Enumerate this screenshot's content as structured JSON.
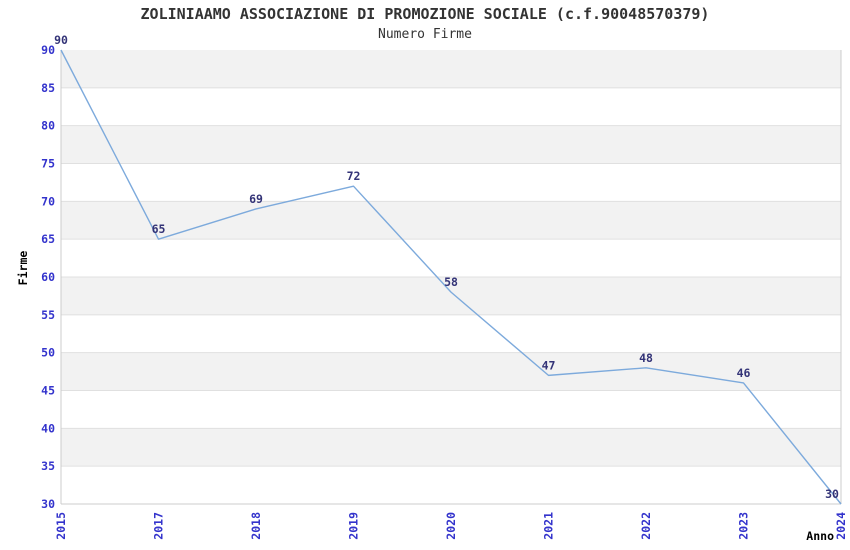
{
  "header": {
    "title": "ZOLINIAAMO ASSOCIAZIONE DI PROMOZIONE SOCIALE (c.f.90048570379)",
    "subtitle": "Numero Firme"
  },
  "chart_data": {
    "type": "line",
    "title": "ZOLINIAAMO ASSOCIAZIONE DI PROMOZIONE SOCIALE (c.f.90048570379)",
    "subtitle": "Numero Firme",
    "xlabel": "Anno",
    "ylabel": "Firme",
    "categories": [
      "2015",
      "2017",
      "2018",
      "2019",
      "2020",
      "2021",
      "2022",
      "2023",
      "2024"
    ],
    "series": [
      {
        "name": "Numero Firme",
        "values": [
          90,
          65,
          69,
          72,
          58,
          47,
          48,
          46,
          30
        ]
      }
    ],
    "data_labels": [
      "90",
      "65",
      "69",
      "72",
      "58",
      "47",
      "48",
      "46",
      "30"
    ],
    "ylim": [
      30,
      90
    ],
    "ytick_step": 5,
    "yticks": [
      30,
      35,
      40,
      45,
      50,
      55,
      60,
      65,
      70,
      75,
      80,
      85,
      90
    ],
    "grid": "horizontal-bands-alternating",
    "legend_position": "none",
    "colors": {
      "line": "#7daadc",
      "tick_label": "#3333cc",
      "data_label": "#333377",
      "band_gray": "#f2f2f2",
      "band_white": "#ffffff",
      "gridline": "#e0e0e0",
      "axis_border": "#cccccc",
      "axis_title": "#000000",
      "title_text": "#333333"
    }
  }
}
